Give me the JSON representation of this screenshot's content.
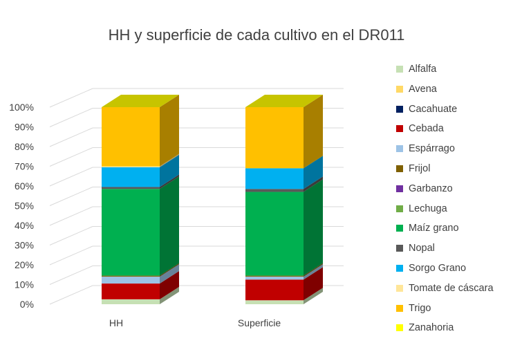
{
  "chart_data": {
    "type": "bar",
    "stacked": "percent",
    "three_d": true,
    "title": "HH y superficie de cada cultivo en el DR011",
    "categories": [
      "HH",
      "Superficie"
    ],
    "y_ticks": [
      "0%",
      "10%",
      "20%",
      "30%",
      "40%",
      "50%",
      "60%",
      "70%",
      "80%",
      "90%",
      "100%"
    ],
    "ylim": [
      0,
      100
    ],
    "grid": true,
    "legend_position": "right",
    "series": [
      {
        "name": "Alfalfa",
        "color": "#c6e0b4",
        "values": [
          2.5,
          2.0
        ]
      },
      {
        "name": "Avena",
        "color": "#ffd966",
        "values": [
          0,
          0
        ]
      },
      {
        "name": "Cacahuate",
        "color": "#002060",
        "values": [
          0,
          0
        ]
      },
      {
        "name": "Cebada",
        "color": "#c00000",
        "values": [
          8.0,
          10.5
        ]
      },
      {
        "name": "Espárrago",
        "color": "#9dc3e6",
        "values": [
          3.5,
          1.5
        ]
      },
      {
        "name": "Frijol",
        "color": "#7f6000",
        "values": [
          0.5,
          0.5
        ]
      },
      {
        "name": "Garbanzo",
        "color": "#7030a0",
        "values": [
          0,
          0
        ]
      },
      {
        "name": "Lechuga",
        "color": "#70ad47",
        "values": [
          0,
          0
        ]
      },
      {
        "name": "Maíz grano",
        "color": "#00b050",
        "values": [
          44.0,
          42.5
        ]
      },
      {
        "name": "Nopal",
        "color": "#595959",
        "values": [
          1.0,
          1.5
        ]
      },
      {
        "name": "Sorgo Grano",
        "color": "#00b0f0",
        "values": [
          10.0,
          10.5
        ]
      },
      {
        "name": "Tomate de cáscara",
        "color": "#ffe699",
        "values": [
          0.5,
          0
        ]
      },
      {
        "name": "Trigo",
        "color": "#ffc000",
        "values": [
          30.0,
          31.0
        ]
      },
      {
        "name": "Zanahoria",
        "color": "#ffff00",
        "values": [
          0,
          0
        ]
      }
    ]
  }
}
